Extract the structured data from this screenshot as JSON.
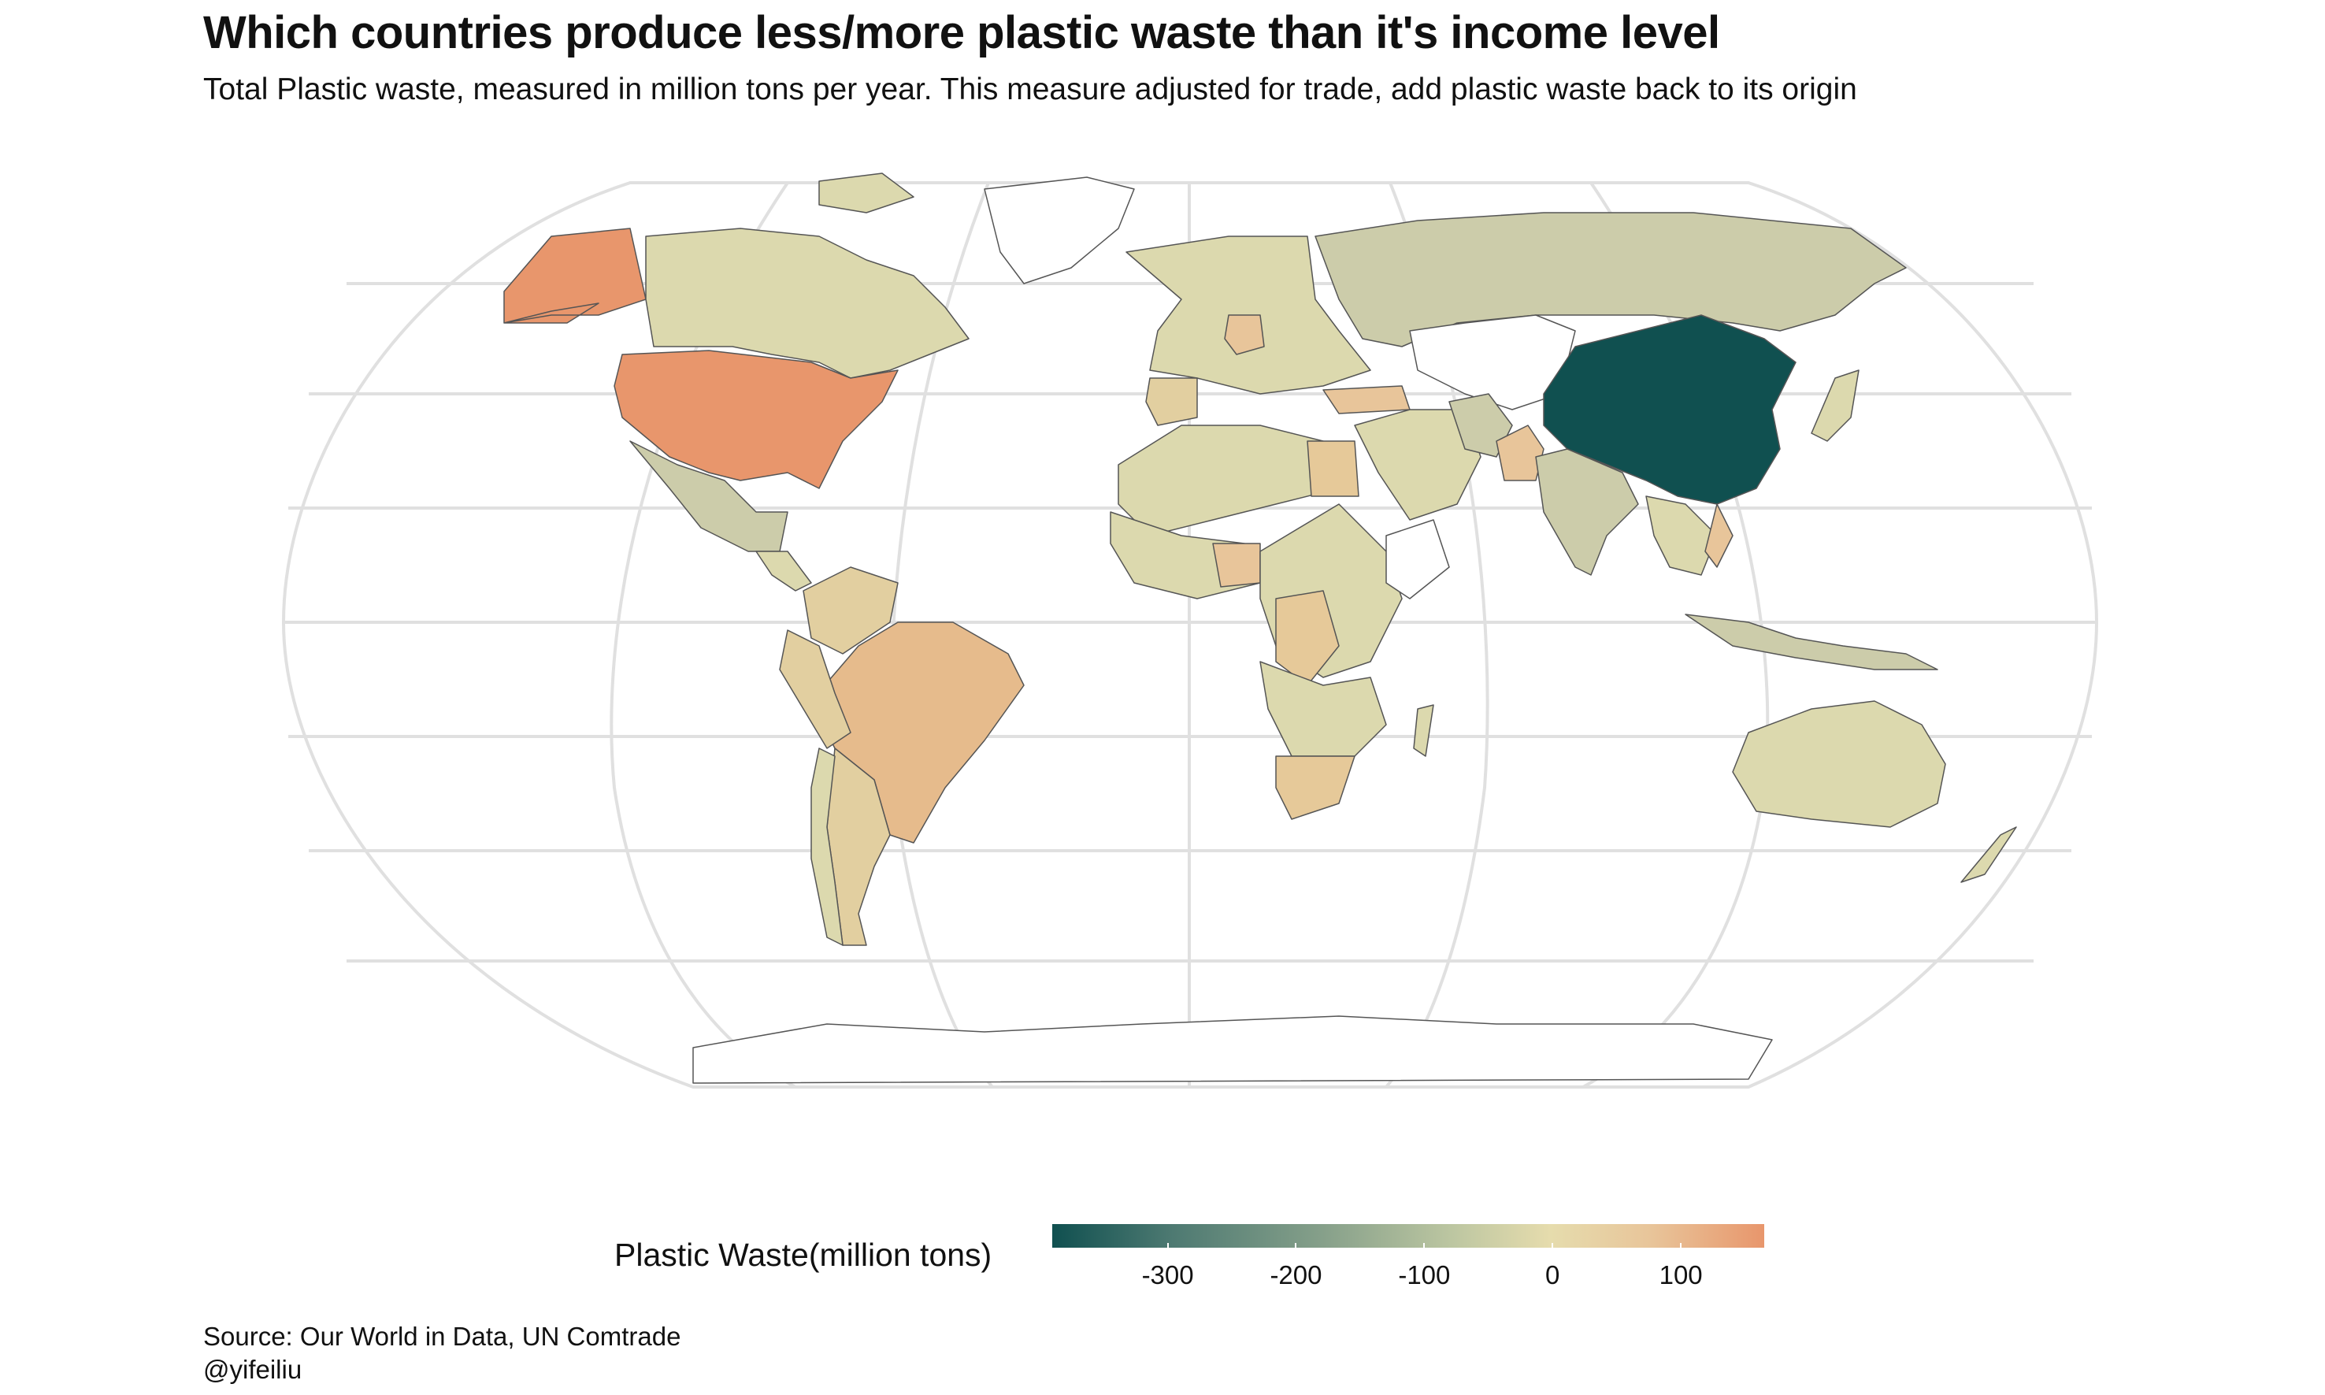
{
  "header": {
    "title": "Which countries produce less/more plastic waste than it's income level",
    "subtitle": "Total Plastic waste, measured in million tons per year. This measure adjusted for trade, add plastic waste back to its origin"
  },
  "legend": {
    "title": "Plastic Waste(million tons)",
    "ticks": [
      {
        "label": "-300",
        "value": -300
      },
      {
        "label": "-200",
        "value": -200
      },
      {
        "label": "-100",
        "value": -100
      },
      {
        "label": "0",
        "value": 0
      },
      {
        "label": "100",
        "value": 100
      }
    ],
    "range": [
      -390,
      165
    ]
  },
  "footer": {
    "source": "Source: Our World in Data, UN Comtrade",
    "handle": "@yifeiliu"
  },
  "colors": {
    "ocean": "#ffffff",
    "grid": "#e0e0e0",
    "border": "#555555",
    "no_data": "#ffffff",
    "china": "#105050",
    "usa": "#e8966c",
    "brazil": "#e6bb8c",
    "russia": "#ccccaa",
    "neutral": "#dcd9ae",
    "warm": "#e8c59a"
  },
  "map_data": {
    "type": "choropleth",
    "projection": "robinson",
    "regions": [
      {
        "name": "China",
        "value": -390
      },
      {
        "name": "United States",
        "value": 150
      },
      {
        "name": "Alaska",
        "value": 150
      },
      {
        "name": "Brazil",
        "value": 70
      },
      {
        "name": "Russia",
        "value": -60
      },
      {
        "name": "Canada",
        "value": -5
      },
      {
        "name": "Greenland",
        "value": null
      },
      {
        "name": "Mexico",
        "value": -30
      },
      {
        "name": "Argentina",
        "value": 20
      },
      {
        "name": "Chile",
        "value": 5
      },
      {
        "name": "Peru",
        "value": 10
      },
      {
        "name": "Colombia",
        "value": 20
      },
      {
        "name": "Venezuela",
        "value": 15
      },
      {
        "name": "Australia",
        "value": 0
      },
      {
        "name": "India",
        "value": -40
      },
      {
        "name": "Pakistan",
        "value": 80
      },
      {
        "name": "Egypt",
        "value": 40
      },
      {
        "name": "Nigeria",
        "value": 70
      },
      {
        "name": "South Africa",
        "value": 50
      },
      {
        "name": "DR Congo",
        "value": 30
      },
      {
        "name": "Sudan",
        "value": 25
      },
      {
        "name": "Germany",
        "value": 80
      },
      {
        "name": "Turkey",
        "value": 40
      },
      {
        "name": "Vietnam",
        "value": 60
      },
      {
        "name": "Indonesia",
        "value": -20
      },
      {
        "name": "Kazakhstan",
        "value": null
      },
      {
        "name": "Saudi Arabia",
        "value": -10
      },
      {
        "name": "Iran",
        "value": -10
      },
      {
        "name": "Algeria",
        "value": 0
      },
      {
        "name": "New Zealand",
        "value": 5
      },
      {
        "name": "Antarctica",
        "value": null
      }
    ]
  }
}
